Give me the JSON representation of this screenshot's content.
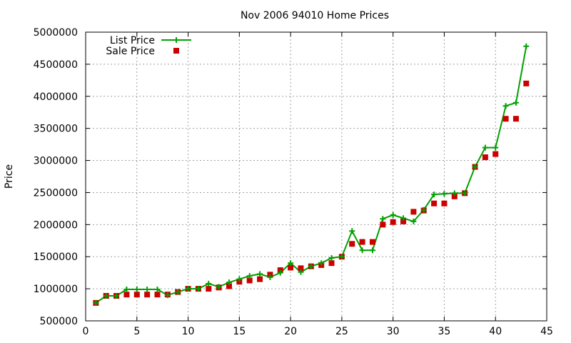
{
  "chart_data": {
    "type": "line",
    "title": "Nov 2006 94010 Home Prices",
    "xlabel": "",
    "ylabel": "Price",
    "xlim": [
      0,
      45
    ],
    "ylim": [
      500000,
      5000000
    ],
    "x_ticks": [
      "0",
      "5",
      "10",
      "15",
      "20",
      "25",
      "30",
      "35",
      "40",
      "45"
    ],
    "x_tick_values": [
      0,
      5,
      10,
      15,
      20,
      25,
      30,
      35,
      40,
      45
    ],
    "y_ticks": [
      "500000",
      "1000000",
      "1500000",
      "2000000",
      "2500000",
      "3000000",
      "3500000",
      "4000000",
      "4500000",
      "5000000"
    ],
    "y_tick_values": [
      500000,
      1000000,
      1500000,
      2000000,
      2500000,
      3000000,
      3500000,
      4000000,
      4500000,
      5000000
    ],
    "grid": true,
    "legend_position": "top-left",
    "x": [
      1,
      2,
      3,
      4,
      5,
      6,
      7,
      8,
      9,
      10,
      11,
      12,
      13,
      14,
      15,
      16,
      17,
      18,
      19,
      20,
      21,
      22,
      23,
      24,
      25,
      26,
      27,
      28,
      29,
      30,
      31,
      32,
      33,
      34,
      35,
      36,
      37,
      38,
      39,
      40,
      41,
      42,
      43
    ],
    "series": [
      {
        "name": "List Price",
        "style": "line+cross",
        "color": "#00a000",
        "values": [
          780000,
          890000,
          890000,
          990000,
          990000,
          990000,
          990000,
          900000,
          950000,
          1000000,
          1000000,
          1080000,
          1030000,
          1100000,
          1150000,
          1200000,
          1230000,
          1180000,
          1250000,
          1400000,
          1260000,
          1350000,
          1400000,
          1480000,
          1500000,
          1900000,
          1600000,
          1600000,
          2090000,
          2150000,
          2100000,
          2050000,
          2230000,
          2470000,
          2480000,
          2490000,
          2490000,
          2900000,
          3200000,
          3200000,
          3850000,
          3900000,
          4780000
        ]
      },
      {
        "name": "Sale Price",
        "style": "square",
        "color": "#cc0000",
        "values": [
          780000,
          890000,
          890000,
          910000,
          910000,
          910000,
          910000,
          910000,
          950000,
          1000000,
          1000000,
          1000000,
          1020000,
          1040000,
          1110000,
          1130000,
          1150000,
          1220000,
          1290000,
          1330000,
          1320000,
          1350000,
          1370000,
          1400000,
          1500000,
          1700000,
          1730000,
          1730000,
          2000000,
          2040000,
          2050000,
          2200000,
          2220000,
          2330000,
          2330000,
          2440000,
          2490000,
          2900000,
          3050000,
          3100000,
          3650000,
          3650000,
          4200000
        ]
      }
    ]
  }
}
